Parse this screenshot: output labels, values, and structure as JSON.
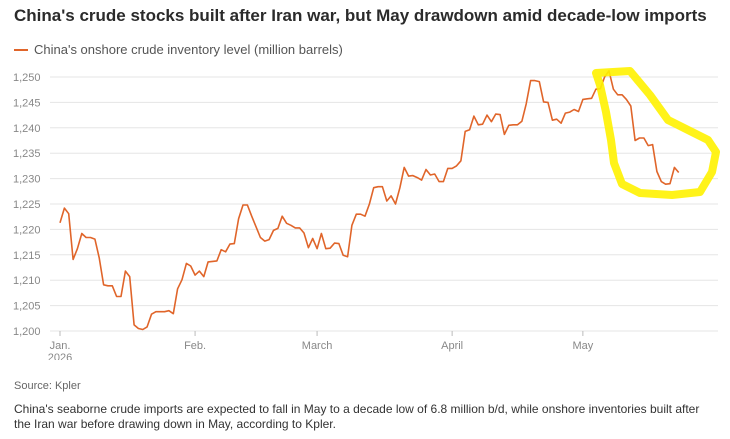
{
  "title": "China's crude stocks built after Iran war, but May drawdown amid decade-low imports",
  "legend_label": "China's onshore crude inventory level (million barrels)",
  "source": "Source: Kpler",
  "caption": "China's seaborne crude imports are expected to fall in May to a decade low of 6.8 million b/d, while onshore inventories built after the Iran war before drawing down in May, according to Kpler.",
  "colors": {
    "series": "#e0652a",
    "highlight": "#fff200",
    "grid": "#e5e5e5",
    "axis": "#bbbbbb"
  },
  "chart_data": {
    "type": "line",
    "title": "China's crude stocks built after Iran war, but May drawdown amid decade-low imports",
    "xlabel": "",
    "ylabel": "",
    "ylim": [
      1200,
      1252
    ],
    "yticks": [
      1200,
      1205,
      1210,
      1215,
      1220,
      1225,
      1230,
      1235,
      1240,
      1245,
      1250
    ],
    "ytick_labels": [
      "1,200",
      "1,205",
      "1,210",
      "1,215",
      "1,220",
      "1,225",
      "1,230",
      "1,235",
      "1,240",
      "1,245",
      "1,250"
    ],
    "xticks": [
      {
        "day": 0,
        "label": "Jan.",
        "sublabel": "2026"
      },
      {
        "day": 31,
        "label": "Feb."
      },
      {
        "day": 59,
        "label": "March"
      },
      {
        "day": 90,
        "label": "April"
      },
      {
        "day": 120,
        "label": "May"
      }
    ],
    "x_span_days": [
      -2,
      147
    ],
    "grid": true,
    "legend_position": "top-left",
    "series": [
      {
        "name": "China's onshore crude inventory level (million barrels)",
        "x": [
          0,
          1,
          2,
          3,
          4,
          5,
          6,
          7,
          8,
          9,
          10,
          11,
          12,
          13,
          14,
          15,
          16,
          17,
          18,
          19,
          20,
          21,
          22,
          23,
          24,
          25,
          26,
          27,
          28,
          29,
          30,
          31,
          32,
          33,
          34,
          35,
          36,
          37,
          38,
          39,
          40,
          41,
          42,
          43,
          44,
          45,
          46,
          47,
          48,
          49,
          50,
          51,
          52,
          53,
          54,
          55,
          56,
          57,
          58,
          59,
          60,
          61,
          62,
          63,
          64,
          65,
          66,
          67,
          68,
          69,
          70,
          71,
          72,
          73,
          74,
          75,
          76,
          77,
          78,
          79,
          80,
          81,
          82,
          83,
          84,
          85,
          86,
          87,
          88,
          89,
          90,
          91,
          92,
          93,
          94,
          95,
          96,
          97,
          98,
          99,
          100,
          101,
          102,
          103,
          104,
          105,
          106,
          107,
          108,
          109,
          110,
          111,
          112,
          113,
          114,
          115,
          116,
          117,
          118,
          119,
          120,
          121,
          122,
          123,
          124,
          125,
          126,
          127,
          128,
          129,
          130,
          131,
          132,
          133,
          134,
          135,
          136,
          137,
          138,
          139,
          140,
          141,
          142
        ],
        "y": [
          1221.3,
          1224.2,
          1223.1,
          1214.1,
          1216.2,
          1219.2,
          1218.4,
          1218.4,
          1218.1,
          1214.4,
          1209.1,
          1208.9,
          1208.9,
          1206.8,
          1206.8,
          1211.8,
          1210.7,
          1201.2,
          1200.5,
          1200.3,
          1200.8,
          1203.3,
          1203.8,
          1203.8,
          1203.8,
          1204.0,
          1203.4,
          1208.3,
          1210.1,
          1213.3,
          1212.8,
          1211.0,
          1211.8,
          1210.7,
          1213.6,
          1213.7,
          1213.8,
          1216.0,
          1215.6,
          1217.1,
          1217.2,
          1222.1,
          1224.8,
          1224.8,
          1222.6,
          1220.5,
          1218.4,
          1217.7,
          1218.0,
          1219.8,
          1220.2,
          1222.6,
          1221.2,
          1220.8,
          1220.3,
          1220.3,
          1219.3,
          1216.4,
          1218.2,
          1216.2,
          1219.2,
          1216.2,
          1216.3,
          1217.3,
          1217.2,
          1214.9,
          1214.6,
          1220.8,
          1223.0,
          1223.0,
          1222.6,
          1225.0,
          1228.2,
          1228.4,
          1228.4,
          1225.6,
          1226.6,
          1225.0,
          1228.2,
          1232.2,
          1230.5,
          1230.6,
          1230.2,
          1229.7,
          1231.8,
          1230.7,
          1230.9,
          1229.4,
          1229.4,
          1232.0,
          1232.0,
          1232.5,
          1233.5,
          1239.3,
          1239.6,
          1242.3,
          1240.6,
          1240.7,
          1242.5,
          1241.2,
          1242.7,
          1242.6,
          1238.7,
          1240.5,
          1240.6,
          1240.6,
          1241.3,
          1244.7,
          1249.3,
          1249.3,
          1249.1,
          1245.1,
          1245.0,
          1241.5,
          1241.7,
          1240.9,
          1242.9,
          1243.1,
          1243.6,
          1243.2,
          1245.6,
          1245.7,
          1245.8,
          1247.6,
          1247.7,
          1250.0,
          1251.2,
          1247.6,
          1246.5,
          1246.5,
          1245.6,
          1244.3,
          1237.5,
          1238.0,
          1238.0,
          1236.5,
          1236.7,
          1231.4,
          1229.4,
          1228.9,
          1229.0,
          1232.2,
          1231.2
        ]
      }
    ],
    "annotation": {
      "type": "hand-drawn yellow circle",
      "around": "May drawdown"
    }
  }
}
